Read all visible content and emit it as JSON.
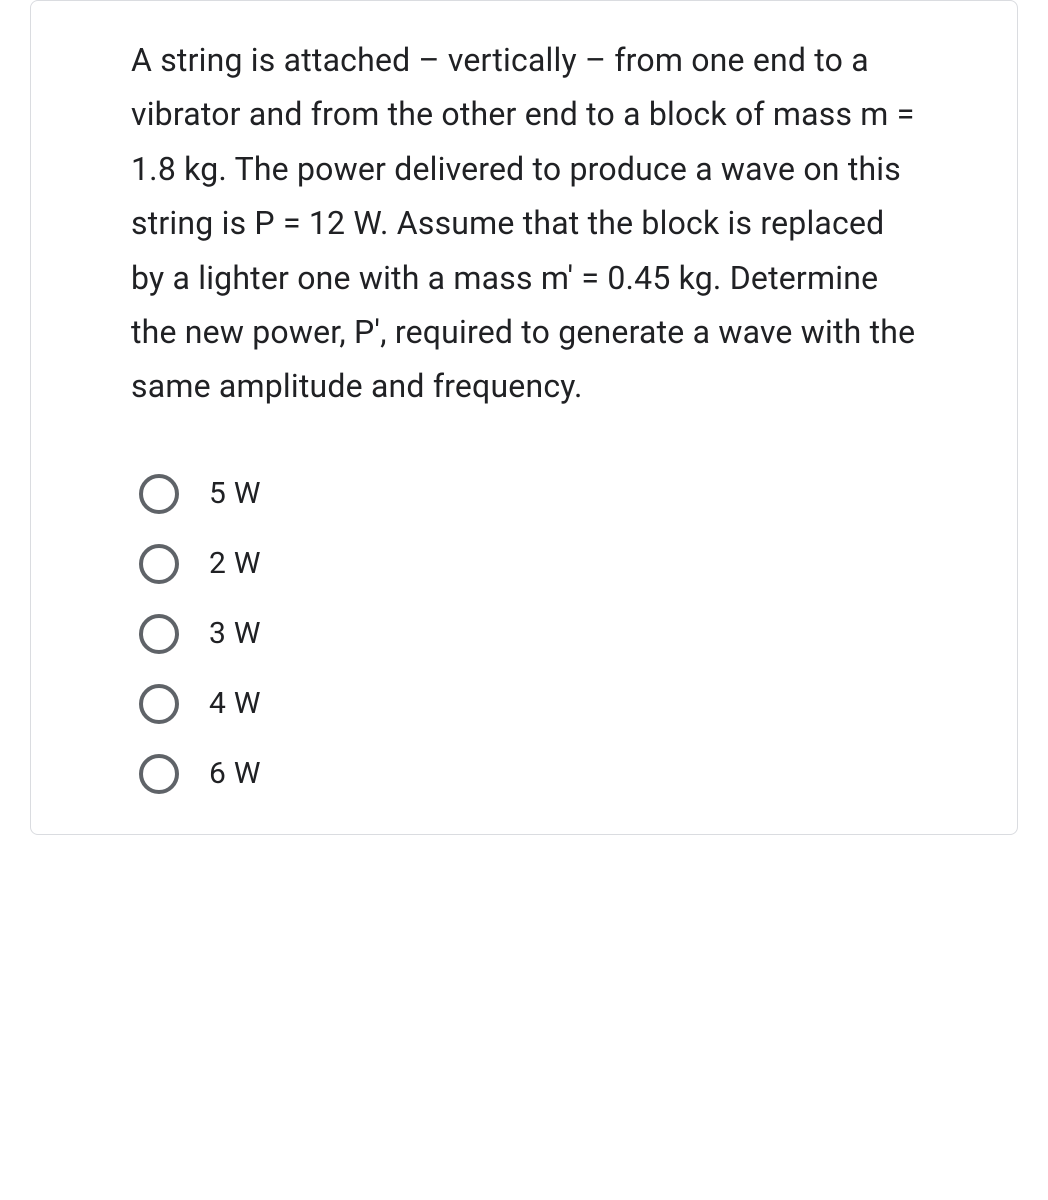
{
  "question": {
    "text": "A string is attached – vertically – from one end to a vibrator and from the other end to a block of mass m = 1.8 kg. The power delivered to produce a wave on this string is P = 12 W. Assume that the block is replaced by a lighter one with a mass m' = 0.45 kg. Determine the new power, P', required to generate a wave with the same amplitude and frequency."
  },
  "options": [
    {
      "label": "5 W"
    },
    {
      "label": "2 W"
    },
    {
      "label": "3 W"
    },
    {
      "label": "4 W"
    },
    {
      "label": "6 W"
    }
  ],
  "styles": {
    "text_color": "#202124",
    "border_color": "#dadce0",
    "radio_border_color": "#5f6368",
    "background_color": "#ffffff",
    "question_fontsize": 32,
    "option_fontsize": 30
  }
}
